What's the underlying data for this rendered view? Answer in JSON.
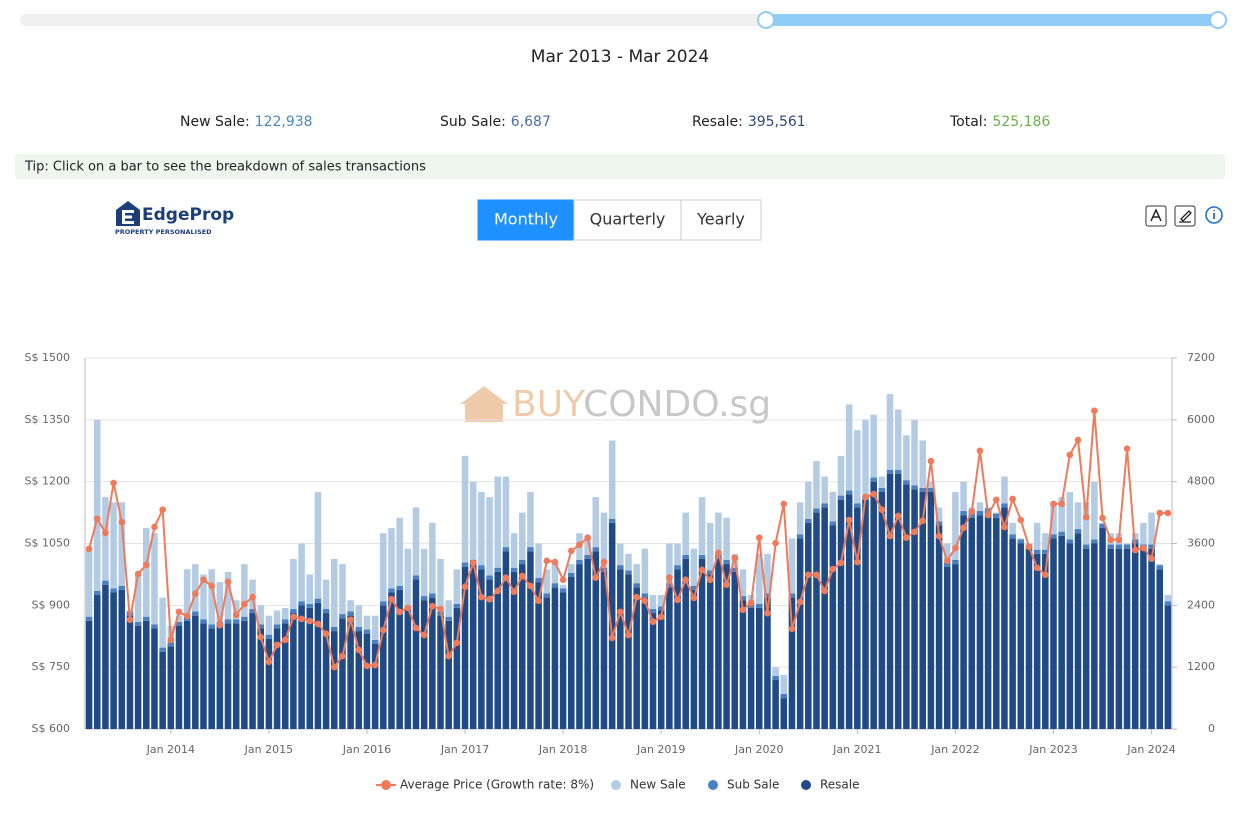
{
  "header": {
    "date_range": "Mar 2013 - Mar 2024",
    "summary": [
      {
        "label": "New Sale:",
        "value": "122,938",
        "color": "#4a86c8"
      },
      {
        "label": "Sub Sale:",
        "value": "6,687",
        "color": "#4a6fa5"
      },
      {
        "label": "Resale:",
        "value": "395,561",
        "color": "#2b4a7a"
      },
      {
        "label": "Total:",
        "value": "525,186",
        "color": "#6ab04c"
      }
    ],
    "tip": "Tip: Click on a bar to see the breakdown of sales transactions"
  },
  "logo": {
    "name": "EdgeProp",
    "tagline": "PROPERTY PERSONALISED"
  },
  "tabs": [
    "Monthly",
    "Quarterly",
    "Yearly"
  ],
  "watermark": {
    "brand1": "BUY",
    "brand2": "CONDO.sg"
  },
  "chart_data": {
    "type": "combo",
    "categories": [
      null,
      null,
      null,
      null,
      null,
      null,
      null,
      null,
      null,
      null,
      "Jan 2014",
      null,
      null,
      null,
      null,
      null,
      null,
      null,
      null,
      null,
      null,
      null,
      "Jan 2015",
      null,
      null,
      null,
      null,
      null,
      null,
      null,
      null,
      null,
      null,
      null,
      "Jan 2016",
      null,
      null,
      null,
      null,
      null,
      null,
      null,
      null,
      null,
      null,
      null,
      "Jan 2017",
      null,
      null,
      null,
      null,
      null,
      null,
      null,
      null,
      null,
      null,
      null,
      "Jan 2018",
      null,
      null,
      null,
      null,
      null,
      null,
      null,
      null,
      null,
      null,
      null,
      "Jan 2019",
      null,
      null,
      null,
      null,
      null,
      null,
      null,
      null,
      null,
      null,
      null,
      "Jan 2020",
      null,
      null,
      null,
      null,
      null,
      null,
      null,
      null,
      null,
      null,
      null,
      "Jan 2021",
      null,
      null,
      null,
      null,
      null,
      null,
      null,
      null,
      null,
      null,
      null,
      "Jan 2022",
      null,
      null,
      null,
      null,
      null,
      null,
      null,
      null,
      null,
      null,
      null,
      "Jan 2023",
      null,
      null,
      null,
      null,
      null,
      null,
      null,
      null,
      null,
      null,
      null,
      "Jan 2024",
      null,
      null
    ],
    "series": [
      {
        "name": "Average Price (Growth rate: 8%)",
        "type": "line",
        "color": "#f07a5a",
        "values": [
          1037,
          1110,
          1076,
          1197,
          1102,
          865,
          976,
          998,
          1090,
          1132,
          816,
          884,
          874,
          928,
          962,
          947,
          852,
          957,
          877,
          903,
          920,
          823,
          763,
          804,
          816,
          872,
          867,
          862,
          855,
          831,
          750,
          777,
          865,
          792,
          753,
          755,
          840,
          915,
          884,
          894,
          845,
          828,
          898,
          891,
          777,
          809,
          945,
          1003,
          920,
          915,
          935,
          967,
          933,
          971,
          947,
          911,
          1008,
          1005,
          962,
          1032,
          1047,
          1064,
          967,
          1005,
          821,
          884,
          828,
          920,
          911,
          860,
          872,
          967,
          913,
          962,
          918,
          986,
          962,
          1027,
          950,
          1015,
          889,
          906,
          1064,
          881,
          1051,
          1146,
          843,
          908,
          974,
          974,
          935,
          988,
          1003,
          1107,
          1005,
          1163,
          1170,
          1132,
          1068,
          1117,
          1064,
          1078,
          1105,
          1250,
          1068,
          1008,
          1039,
          1088,
          1127,
          1275,
          1119,
          1156,
          1090,
          1158,
          1107,
          1042,
          991,
          974,
          1146,
          1146,
          1265,
          1301,
          1114,
          1372,
          1112,
          1059,
          1059,
          1280,
          1034,
          1039,
          1013,
          1124,
          1124
        ]
      },
      {
        "name": "New Sale",
        "type": "bar",
        "axis": "y2",
        "color": "#b4cbe4",
        "values": [
          1320,
          3320,
          1620,
          1670,
          1620,
          20,
          920,
          1720,
          1770,
          970,
          320,
          120,
          920,
          920,
          870,
          1070,
          770,
          920,
          370,
          1020,
          570,
          370,
          370,
          270,
          220,
          970,
          1120,
          570,
          2070,
          570,
          1320,
          970,
          220,
          420,
          270,
          470,
          1320,
          1170,
          1320,
          1120,
          1320,
          920,
          1370,
          1020,
          320,
          670,
          2070,
          1520,
          1420,
          1520,
          1770,
          1370,
          670,
          920,
          1070,
          670,
          470,
          370,
          70,
          170,
          520,
          320,
          970,
          1070,
          1520,
          420,
          320,
          370,
          870,
          270,
          220,
          770,
          420,
          820,
          720,
          1120,
          920,
          820,
          820,
          270,
          520,
          170,
          970,
          770,
          170,
          370,
          1070,
          620,
          720,
          920,
          520,
          570,
          770,
          1670,
          1420,
          1470,
          1220,
          220,
          1470,
          1170,
          870,
          1270,
          920,
          120,
          270,
          370,
          1320,
          570,
          120,
          170,
          20,
          20,
          520,
          220,
          20,
          20,
          520,
          320,
          620,
          670,
          920,
          520,
          820,
          1120,
          20,
          220,
          220,
          20,
          120,
          420,
          620,
          20,
          120
        ]
      },
      {
        "name": "Sub Sale",
        "type": "bar",
        "axis": "y2",
        "color": "#4a7fc1",
        "values": [
          80,
          80,
          80,
          80,
          80,
          80,
          80,
          80,
          80,
          80,
          80,
          80,
          80,
          80,
          80,
          80,
          80,
          80,
          80,
          80,
          80,
          80,
          80,
          80,
          80,
          80,
          80,
          80,
          80,
          80,
          80,
          80,
          80,
          80,
          80,
          80,
          80,
          80,
          80,
          80,
          80,
          80,
          80,
          80,
          80,
          80,
          80,
          80,
          80,
          80,
          80,
          80,
          80,
          80,
          80,
          80,
          80,
          80,
          80,
          80,
          80,
          80,
          80,
          80,
          80,
          80,
          80,
          80,
          80,
          80,
          80,
          80,
          80,
          80,
          80,
          80,
          80,
          80,
          80,
          80,
          80,
          80,
          80,
          80,
          80,
          80,
          80,
          80,
          80,
          80,
          80,
          80,
          80,
          80,
          80,
          80,
          80,
          80,
          80,
          80,
          80,
          80,
          80,
          80,
          80,
          80,
          80,
          80,
          80,
          80,
          80,
          80,
          80,
          80,
          80,
          80,
          80,
          80,
          80,
          80,
          80,
          80,
          80,
          80,
          80,
          80,
          80,
          80,
          80,
          80,
          80,
          80,
          80
        ]
      },
      {
        "name": "Resale",
        "type": "bar",
        "axis": "y2",
        "color": "#1f4a85",
        "values": [
          2100,
          2600,
          2800,
          2650,
          2700,
          2200,
          2000,
          2100,
          1950,
          1500,
          1600,
          2000,
          2100,
          2200,
          2050,
          1950,
          2000,
          2050,
          2050,
          2100,
          2250,
          1950,
          1750,
          1950,
          2050,
          2250,
          2400,
          2350,
          2450,
          2250,
          1900,
          2150,
          2200,
          1900,
          1850,
          1650,
          2400,
          2650,
          2700,
          2300,
          2900,
          2500,
          2550,
          2200,
          2100,
          2350,
          3150,
          3200,
          3100,
          2900,
          3050,
          3450,
          3050,
          3200,
          3450,
          2850,
          2550,
          2750,
          2650,
          2950,
          3200,
          3300,
          3450,
          3050,
          4000,
          3100,
          3000,
          2750,
          2550,
          2250,
          2300,
          2750,
          3100,
          3300,
          2700,
          3300,
          3000,
          3300,
          3200,
          3050,
          2500,
          2350,
          2350,
          2550,
          950,
          600,
          2550,
          3700,
          4000,
          4200,
          4300,
          3950,
          4450,
          4550,
          4300,
          4450,
          4800,
          4600,
          4950,
          4950,
          4750,
          4650,
          4600,
          4600,
          3950,
          3150,
          3200,
          4150,
          4100,
          4150,
          4200,
          4100,
          4300,
          3700,
          3600,
          3500,
          3400,
          3400,
          3700,
          3750,
          3600,
          3800,
          3500,
          3600,
          3900,
          3500,
          3500,
          3500,
          3600,
          3500,
          3500,
          3100,
          2400
        ]
      }
    ],
    "ylim": [
      600,
      1500
    ],
    "yticks": [
      {
        "value": 600,
        "label": "S$ 600"
      },
      {
        "value": 750,
        "label": "S$ 750"
      },
      {
        "value": 900,
        "label": "S$ 900"
      },
      {
        "value": 1050,
        "label": "S$ 1050"
      },
      {
        "value": 1200,
        "label": "S$ 1200"
      },
      {
        "value": 1350,
        "label": "S$ 1350"
      },
      {
        "value": 1500,
        "label": "S$ 1500"
      }
    ],
    "y2lim": [
      0,
      7200
    ],
    "y2ticks": [
      0,
      1200,
      2400,
      3600,
      4800,
      6000,
      7200
    ],
    "grid": true
  }
}
